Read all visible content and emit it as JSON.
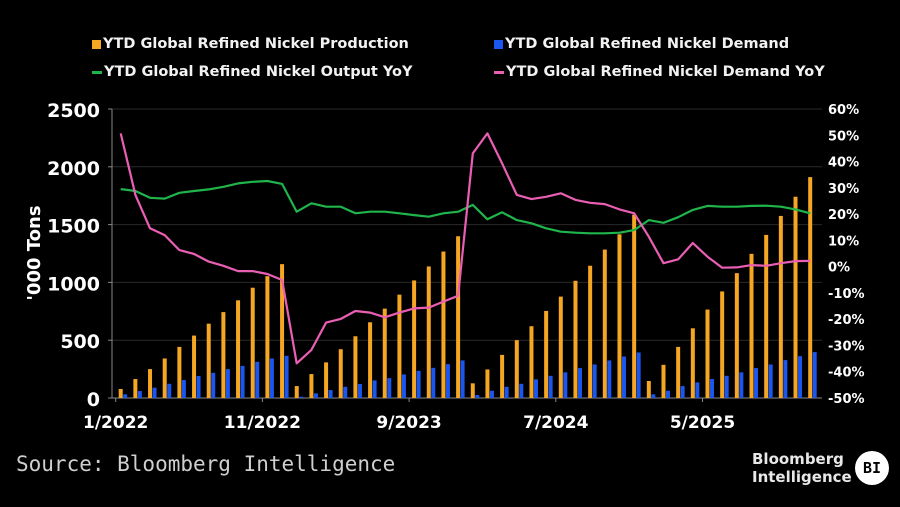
{
  "chart_data": {
    "type": "bar+line",
    "x": [
      "1/2022",
      "2/2022",
      "3/2022",
      "4/2022",
      "5/2022",
      "6/2022",
      "7/2022",
      "8/2022",
      "9/2022",
      "10/2022",
      "11/2022",
      "12/2022",
      "1/2023",
      "2/2023",
      "3/2023",
      "4/2023",
      "5/2023",
      "6/2023",
      "7/2023",
      "8/2023",
      "9/2023",
      "10/2023",
      "11/2023",
      "12/2023",
      "1/2024",
      "2/2024",
      "3/2024",
      "4/2024",
      "5/2024",
      "6/2024",
      "7/2024",
      "8/2024",
      "9/2024",
      "10/2024",
      "11/2024",
      "12/2024",
      "1/2025",
      "2/2025",
      "3/2025",
      "4/2025",
      "5/2025",
      "6/2025",
      "7/2025",
      "8/2025",
      "9/2025",
      "10/2025",
      "11/2025",
      "12/2025"
    ],
    "x_tick_labels": [
      "1/2022",
      "11/2022",
      "9/2023",
      "7/2024",
      "5/2025"
    ],
    "x_tick_indices": [
      0,
      10,
      20,
      30,
      40
    ],
    "ylabel": "'000 Tons",
    "ylim": [
      0,
      2500
    ],
    "y_ticks": [
      "0",
      "500",
      "1000",
      "1500",
      "2000",
      "2500"
    ],
    "y2lim": [
      -50,
      60
    ],
    "y2_ticks": [
      "-50%",
      "-40%",
      "-30%",
      "-20%",
      "-10%",
      "0%",
      "10%",
      "20%",
      "30%",
      "40%",
      "50%",
      "60%"
    ],
    "grid": true,
    "legend_position": "top",
    "series": [
      {
        "name": "YTD Global Refined Nickel Production",
        "type": "bar",
        "axis": "left",
        "color": "#f5a623",
        "values": [
          78,
          164,
          250,
          342,
          442,
          540,
          643,
          743,
          845,
          954,
          1054,
          1158,
          103,
          207,
          308,
          422,
          534,
          655,
          773,
          894,
          1017,
          1138,
          1267,
          1399,
          127,
          247,
          373,
          500,
          621,
          753,
          877,
          1014,
          1144,
          1284,
          1416,
          1586,
          147,
          287,
          442,
          603,
          765,
          922,
          1080,
          1247,
          1411,
          1575,
          1741,
          1911
        ]
      },
      {
        "name": "YTD Global Refined Nickel Demand",
        "type": "bar",
        "axis": "left",
        "color": "#1a56f0",
        "values": [
          32,
          60,
          89,
          123,
          155,
          190,
          218,
          250,
          278,
          313,
          342,
          365,
          11,
          40,
          69,
          97,
          121,
          152,
          172,
          204,
          235,
          261,
          293,
          325,
          26,
          63,
          97,
          123,
          161,
          192,
          222,
          259,
          290,
          325,
          359,
          394,
          32,
          63,
          103,
          135,
          164,
          192,
          222,
          259,
          290,
          328,
          362,
          397
        ]
      },
      {
        "name": "YTD Global Refined Nickel Output YoY",
        "type": "line",
        "axis": "right",
        "color": "#1fb54a",
        "values": [
          29.5,
          28.8,
          26.2,
          25.9,
          28.1,
          28.8,
          29.4,
          30.4,
          31.7,
          32.3,
          32.6,
          31.5,
          20.9,
          24.1,
          22.8,
          22.8,
          20.3,
          20.9,
          20.9,
          20.3,
          19.6,
          19.0,
          20.3,
          20.9,
          23.5,
          18.0,
          20.7,
          17.7,
          16.5,
          14.6,
          13.3,
          12.9,
          12.7,
          12.7,
          12.9,
          13.9,
          17.7,
          16.7,
          18.8,
          21.6,
          23.1,
          22.8,
          22.8,
          23.1,
          23.2,
          22.8,
          21.8,
          20.3
        ]
      },
      {
        "name": "YTD Global Refined Nickel Demand YoY",
        "type": "line",
        "axis": "right",
        "color": "#ea5fb4",
        "values": [
          50.7,
          27.3,
          14.6,
          12.0,
          6.3,
          4.8,
          1.9,
          0.3,
          -1.7,
          -1.7,
          -2.8,
          -5.1,
          -36.8,
          -31.7,
          -21.3,
          -19.9,
          -16.9,
          -17.5,
          -19.3,
          -17.5,
          -15.9,
          -15.6,
          -13.3,
          -11.1,
          43.1,
          50.7,
          39.3,
          27.3,
          25.7,
          26.6,
          27.9,
          25.4,
          24.3,
          23.8,
          21.8,
          20.3,
          11.4,
          1.3,
          2.8,
          9.0,
          3.8,
          -0.4,
          -0.3,
          0.6,
          0.3,
          1.3,
          2.1,
          2.2
        ]
      }
    ]
  },
  "footer": {
    "source": "Source: Bloomberg Intelligence",
    "brand_line1": "Bloomberg",
    "brand_line2": "Intelligence",
    "badge": "BI"
  }
}
